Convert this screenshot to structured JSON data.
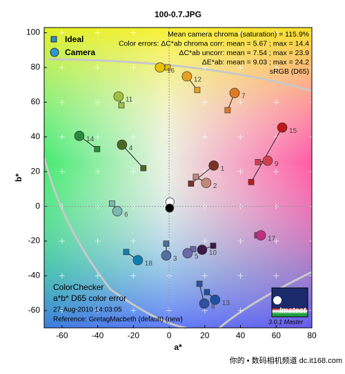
{
  "chart_data": {
    "type": "scatter",
    "title": "100-0.7.JPG",
    "x_label": "a*",
    "y_label": "b*",
    "xlim": [
      -70,
      80
    ],
    "ylim": [
      -70,
      103
    ],
    "xticks": [
      -60,
      -40,
      -20,
      0,
      20,
      40,
      60,
      80
    ],
    "yticks": [
      -60,
      -40,
      -20,
      0,
      20,
      40,
      60,
      80,
      100
    ],
    "grid": true,
    "legend_position": "upper-left",
    "patch_labels": [
      "1",
      "2",
      "3",
      "4",
      "5",
      "6",
      "7",
      "8",
      "9",
      "10",
      "11",
      "12",
      "13",
      "14",
      "15",
      "16",
      "17",
      "18"
    ],
    "colors": [
      "#7a3222",
      "#c48878",
      "#5070a0",
      "#4a6a22",
      "#6a6aaa",
      "#7ab8b0",
      "#e07a20",
      "#3050a0",
      "#d04050",
      "#3a1a4a",
      "#a0c040",
      "#e8a020",
      "#2050a0",
      "#2a8a3a",
      "#c01818",
      "#e8c000",
      "#c03080",
      "#1080b0"
    ],
    "series": [
      {
        "name": "Ideal",
        "marker": "square",
        "x": [
          12.3,
          15.0,
          -1.6,
          -14.4,
          13.5,
          -32.0,
          32.8,
          17.0,
          49.8,
          24.7,
          -26.7,
          15.8,
          21.2,
          -40.3,
          46.0,
          -0.8,
          49.4,
          -24.0
        ],
        "y": [
          13.1,
          17.0,
          -21.5,
          22.0,
          -24.7,
          1.6,
          55.4,
          -44.6,
          25.5,
          -22.7,
          58.2,
          67.0,
          -49.4,
          33.0,
          14.0,
          80.0,
          -16.7,
          -26.3
        ]
      },
      {
        "name": "Camera",
        "marker": "circle",
        "x": [
          25.0,
          20.8,
          -1.6,
          -26.4,
          10.4,
          -29.0,
          36.7,
          19.7,
          55.2,
          18.5,
          -28.3,
          10.0,
          25.8,
          -50.3,
          63.4,
          -5.1,
          51.4,
          -17.5
        ],
        "y": [
          23.5,
          13.5,
          -28.3,
          35.5,
          -27.0,
          -2.8,
          65.3,
          -56.0,
          26.3,
          -25.0,
          63.3,
          74.9,
          -53.8,
          40.6,
          45.4,
          80.0,
          -16.7,
          -31.0
        ]
      }
    ],
    "neutral_points": {
      "x": [
        0.5,
        0.3
      ],
      "y": [
        2.5,
        -1.0
      ],
      "colors": [
        "#ffffff",
        "#000000"
      ]
    },
    "annotations": [
      "Mean camera chroma (saturation) = 115.9%",
      "Color errors:  ΔC*ab chroma corr:  mean = 5.67 ;  max = 14.4",
      "ΔC*ab uncorr:  mean = 7.54 ;  max = 23.9",
      "ΔE*ab:  mean = 9.03 ;  max = 24.2",
      "sRGB (D65)"
    ],
    "footer_title": "ColorChecker",
    "footer_subtitle": "a*b* D65 color error",
    "timestamp": "27-Aug-2010 14:03:05",
    "reference": "Reference: GretagMacbeth (default) (new)",
    "logo": "Imatest",
    "version": "3.0.1  Master",
    "watermark": "你的 • 数码相机频道  dc.it168.com"
  }
}
